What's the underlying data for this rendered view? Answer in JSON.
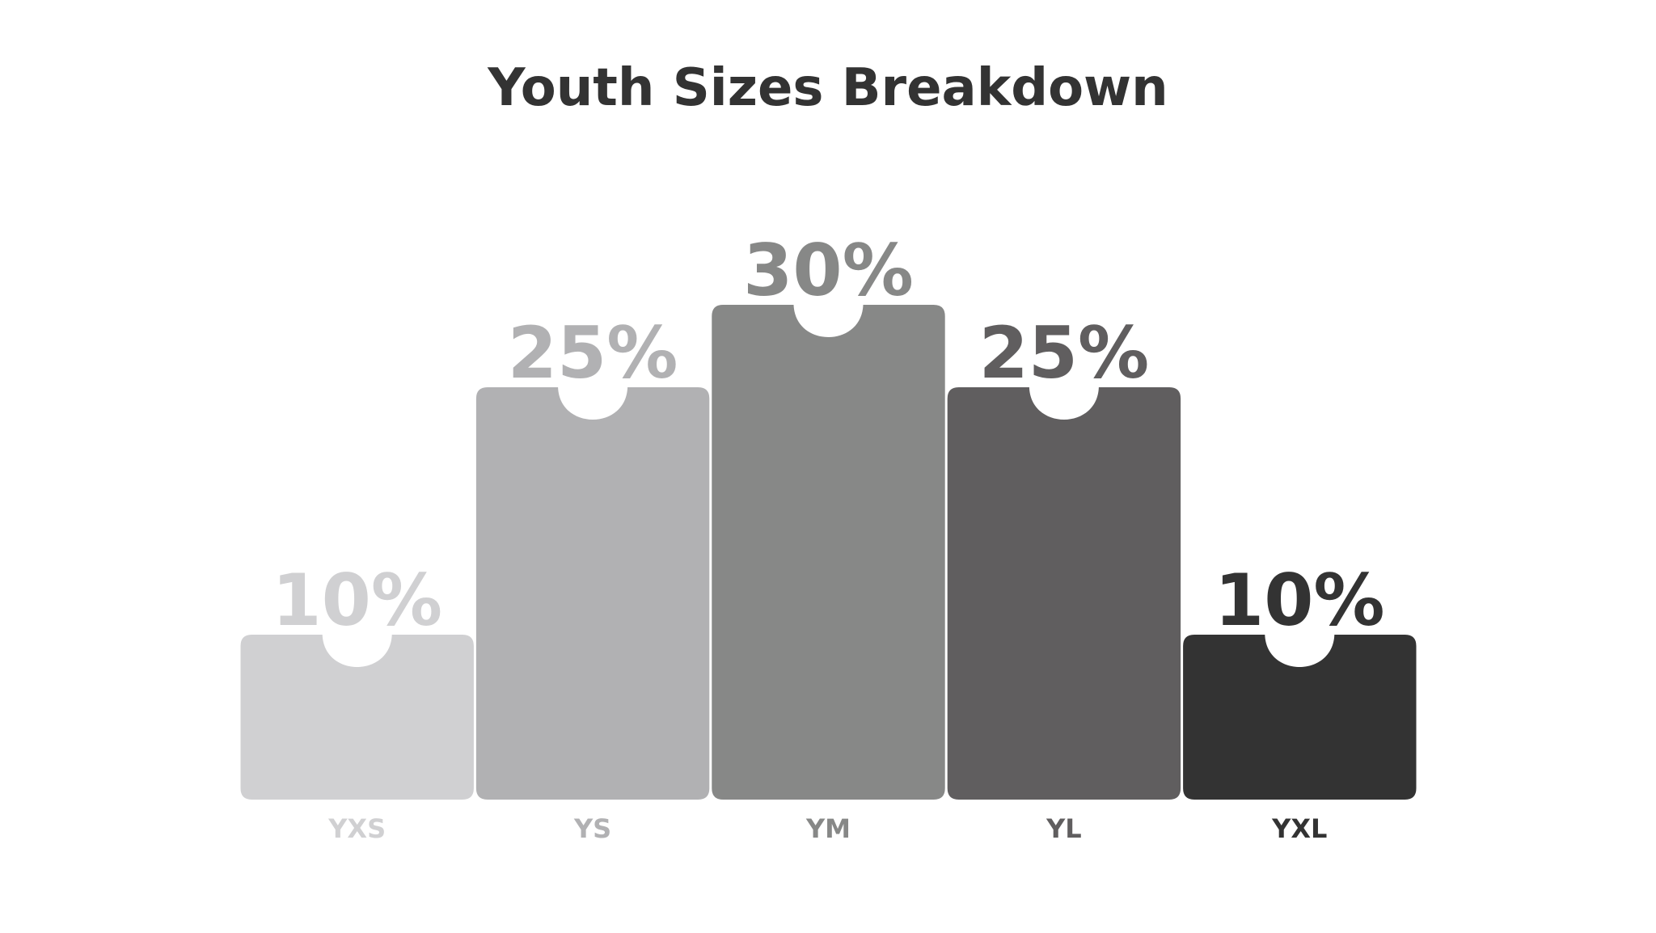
{
  "chart_data": {
    "type": "bar",
    "title": "Youth Sizes Breakdown",
    "categories": [
      "YXS",
      "YS",
      "YM",
      "YL",
      "YXL"
    ],
    "values": [
      10,
      25,
      30,
      25,
      10
    ],
    "value_labels": [
      "10%",
      "25%",
      "30%",
      "25%",
      "10%"
    ],
    "colors": [
      "#d0d0d2",
      "#b1b1b3",
      "#878887",
      "#605e5f",
      "#333333"
    ]
  }
}
